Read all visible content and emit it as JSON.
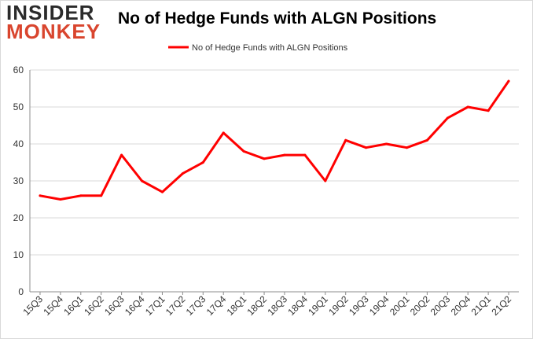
{
  "logo": {
    "line1": "INSIDER",
    "line2": "MONKEY"
  },
  "colors": {
    "series_line": "#ff0000",
    "grid": "#d9d9d9",
    "axis": "#8c8c8c",
    "logo_dark": "#2b2b2b",
    "logo_accent": "#d9452e"
  },
  "chart_data": {
    "type": "line",
    "title": "No of Hedge Funds with ALGN Positions",
    "categories": [
      "15Q3",
      "15Q4",
      "16Q1",
      "16Q2",
      "16Q3",
      "16Q4",
      "17Q1",
      "17Q2",
      "17Q3",
      "17Q4",
      "18Q1",
      "18Q2",
      "18Q3",
      "18Q4",
      "19Q1",
      "19Q2",
      "19Q3",
      "19Q4",
      "20Q1",
      "20Q2",
      "20Q3",
      "20Q4",
      "21Q1",
      "21Q2"
    ],
    "series": [
      {
        "name": "No of Hedge Funds with ALGN Positions",
        "values": [
          26,
          25,
          26,
          26,
          37,
          30,
          27,
          32,
          35,
          43,
          38,
          36,
          37,
          37,
          30,
          41,
          39,
          40,
          39,
          41,
          47,
          50,
          49,
          57
        ]
      }
    ],
    "ylim": [
      0,
      60
    ],
    "yticks": [
      0,
      10,
      20,
      30,
      40,
      50,
      60
    ],
    "grid": true,
    "legend_position": "top-center"
  }
}
